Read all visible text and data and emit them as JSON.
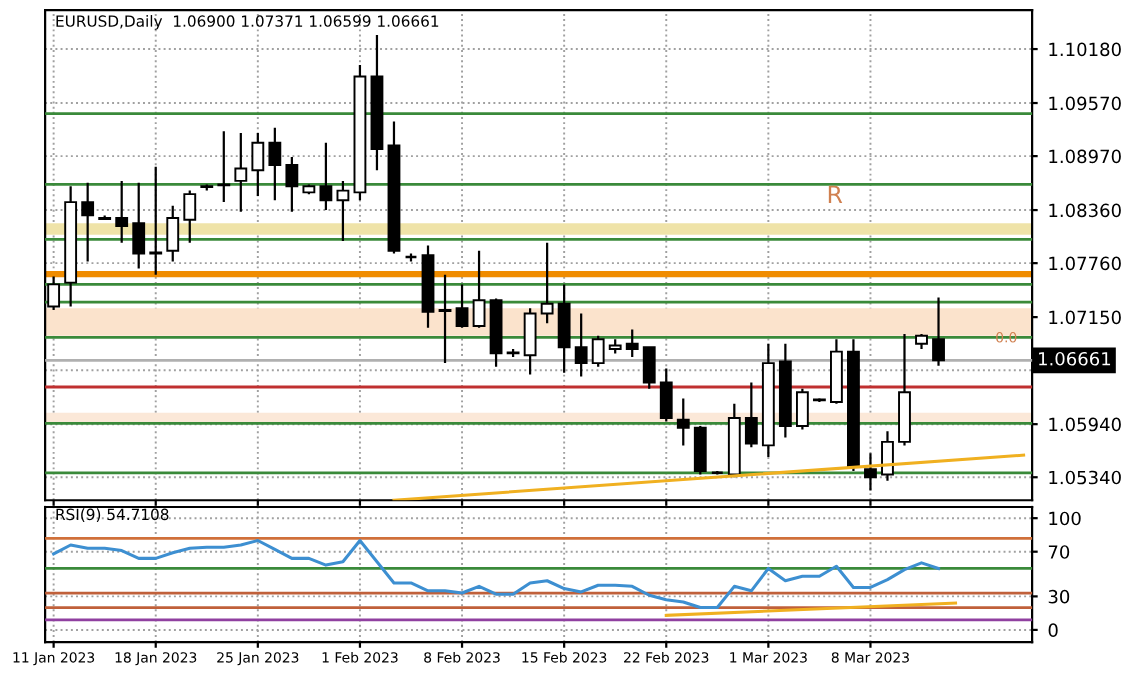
{
  "chart_data": [
    {
      "type": "candlestick",
      "title": "EURUSD,Daily  1.06900 1.07371 1.06599 1.06661",
      "categories": [
        null,
        null,
        null,
        null,
        null,
        null,
        null,
        null,
        null,
        null,
        null,
        null,
        null,
        null,
        null,
        null,
        null,
        null,
        null,
        null,
        null,
        null,
        null,
        null,
        null,
        null,
        null,
        null,
        null,
        null,
        null,
        null,
        null,
        null,
        null,
        null,
        null,
        null,
        null,
        null,
        null,
        null,
        null,
        null,
        null,
        null,
        null,
        null,
        null,
        null,
        null,
        null,
        null,
        null,
        null,
        null,
        null,
        null
      ],
      "ohlc": [
        [
          1.0727,
          1.0761,
          1.0723,
          1.0752
        ],
        [
          1.0754,
          1.0863,
          1.0727,
          1.0845
        ],
        [
          1.0845,
          1.0867,
          1.0778,
          1.083
        ],
        [
          1.0827,
          1.083,
          1.0825,
          1.0826
        ],
        [
          1.0827,
          1.0869,
          1.0799,
          1.0818
        ],
        [
          1.0821,
          1.0867,
          1.077,
          1.0787
        ],
        [
          1.0787,
          1.0885,
          1.0763,
          1.0788
        ],
        [
          1.079,
          1.0841,
          1.0778,
          1.0827
        ],
        [
          1.0825,
          1.0858,
          1.0799,
          1.0854
        ],
        [
          1.0862,
          1.0865,
          1.0858,
          1.0863
        ],
        [
          1.0864,
          1.0925,
          1.0845,
          1.0865
        ],
        [
          1.0869,
          1.0923,
          1.0834,
          1.0883
        ],
        [
          1.0881,
          1.0923,
          1.0852,
          1.0912
        ],
        [
          1.0912,
          1.0929,
          1.0847,
          1.0887
        ],
        [
          1.0887,
          1.0896,
          1.0834,
          1.0863
        ],
        [
          1.0856,
          1.0865,
          1.0854,
          1.0863
        ],
        [
          1.0863,
          1.0912,
          1.0836,
          1.0847
        ],
        [
          1.0847,
          1.0869,
          1.0801,
          1.0858
        ],
        [
          1.0856,
          1.1,
          1.0847,
          1.0987
        ],
        [
          1.0987,
          1.1034,
          1.0881,
          1.0905
        ],
        [
          1.0909,
          1.0936,
          1.0787,
          1.079
        ],
        [
          1.0783,
          1.0787,
          1.0778,
          1.0783
        ],
        [
          1.0785,
          1.0796,
          1.0703,
          1.0721
        ],
        [
          1.0723,
          1.0763,
          1.0663,
          1.0722
        ],
        [
          1.0725,
          1.0752,
          1.0703,
          1.0705
        ],
        [
          1.0705,
          1.079,
          1.0703,
          1.0734
        ],
        [
          1.0734,
          1.0736,
          1.0659,
          1.0674
        ],
        [
          1.0674,
          1.0679,
          1.067,
          1.0675
        ],
        [
          1.0672,
          1.0725,
          1.065,
          1.0719
        ],
        [
          1.0719,
          1.0799,
          1.0708,
          1.073
        ],
        [
          1.073,
          1.0752,
          1.0652,
          1.0681
        ],
        [
          1.0681,
          1.0719,
          1.0648,
          1.0663
        ],
        [
          1.0663,
          1.0694,
          1.0659,
          1.069
        ],
        [
          1.0679,
          1.069,
          1.0674,
          1.0683
        ],
        [
          1.0685,
          1.0701,
          1.067,
          1.0679
        ],
        [
          1.0681,
          1.0681,
          1.0634,
          1.0641
        ],
        [
          1.0641,
          1.0657,
          1.0597,
          1.0601
        ],
        [
          1.0599,
          1.0623,
          1.057,
          1.059
        ],
        [
          1.059,
          1.0592,
          1.0537,
          1.0541
        ],
        [
          1.0539,
          1.0541,
          1.0537,
          1.0539
        ],
        [
          1.0537,
          1.0617,
          1.0534,
          1.0601
        ],
        [
          1.0601,
          1.0641,
          1.0568,
          1.0572
        ],
        [
          1.057,
          1.0685,
          1.0557,
          1.0663
        ],
        [
          1.0665,
          1.0685,
          1.0579,
          1.0592
        ],
        [
          1.0592,
          1.0634,
          1.0588,
          1.063
        ],
        [
          1.0621,
          1.0623,
          1.0619,
          1.0622
        ],
        [
          1.0619,
          1.069,
          1.0617,
          1.0676
        ],
        [
          1.0676,
          1.069,
          1.0541,
          1.0546
        ],
        [
          1.0543,
          1.0561,
          1.0519,
          1.0534
        ],
        [
          1.0537,
          1.0586,
          1.053,
          1.0574
        ],
        [
          1.0574,
          1.0696,
          1.057,
          1.063
        ],
        [
          1.0685,
          1.0696,
          1.0679,
          1.0694
        ],
        [
          1.069,
          1.07371,
          1.06599,
          1.06661
        ],
        null,
        null,
        null,
        null,
        null
      ],
      "series": [
        {
          "type": "line",
          "color": "#f0b020",
          "values": [
            null,
            null,
            null,
            null,
            null,
            null,
            null,
            null,
            null,
            null,
            null,
            null,
            null,
            null,
            null,
            null,
            null,
            null,
            null,
            null,
            1.0508,
            null,
            null,
            null,
            null,
            null,
            null,
            null,
            null,
            null,
            null,
            null,
            null,
            null,
            null,
            null,
            null,
            null,
            null,
            null,
            null,
            null,
            null,
            null,
            null,
            null,
            null,
            null,
            null,
            null,
            null,
            null,
            null,
            null,
            null,
            null,
            null,
            1.0559
          ]
        }
      ],
      "ylim": [
        1.0508,
        1.1062
      ],
      "yticks": [
        {
          "value": 1.1018,
          "label": "1.10180"
        },
        {
          "value": 1.0957,
          "label": "1.09570"
        },
        {
          "value": 1.0897,
          "label": "1.08970"
        },
        {
          "value": 1.0836,
          "label": "1.08360"
        },
        {
          "value": 1.0776,
          "label": "1.07760"
        },
        {
          "value": 1.0715,
          "label": "1.07150"
        },
        {
          "value": 1.0655,
          "label": null
        },
        {
          "value": 1.0594,
          "label": "1.05940"
        },
        {
          "value": 1.0534,
          "label": "1.05340"
        }
      ],
      "ref_lines": [
        {
          "axis": "y",
          "value": 1.0945,
          "color": "#3a8a3a"
        },
        {
          "axis": "y",
          "value": 1.0865,
          "color": "#3a8a3a"
        },
        {
          "axis": "y",
          "value": 1.0803,
          "color": "#3a8a3a"
        },
        {
          "axis": "y",
          "value": 1.0752,
          "color": "#3a8a3a"
        },
        {
          "axis": "y",
          "value": 1.0732,
          "color": "#3a8a3a"
        },
        {
          "axis": "y",
          "value": 1.0692,
          "color": "#3a8a3a"
        },
        {
          "axis": "y",
          "value": 1.0636,
          "color": "#c03030"
        },
        {
          "axis": "y",
          "value": 1.0595,
          "color": "#3a8a3a"
        },
        {
          "axis": "y",
          "value": 1.0539,
          "color": "#3a8a3a"
        },
        {
          "axis": "y",
          "value": 1.06661,
          "label": "1.06661",
          "color": "#b0b0b0"
        }
      ],
      "bands": [
        {
          "axis": "y",
          "from": 1.076,
          "to": 1.0767,
          "color": "#f08c00"
        },
        {
          "axis": "y",
          "from": 1.0808,
          "to": 1.0821,
          "color": "#efe3a8"
        },
        {
          "axis": "y",
          "from": 1.0694,
          "to": 1.0725,
          "color": "#fbe3cc"
        },
        {
          "axis": "y",
          "from": 1.0596,
          "to": 1.0607,
          "color": "#fbe8d8"
        }
      ],
      "annotations": [
        "R",
        "0.0"
      ],
      "grid": true,
      "legend": false,
      "tick_labels": "y"
    },
    {
      "type": "line",
      "title": "RSI(9) 54.7108",
      "categories": [
        "11 Jan 2023",
        null,
        null,
        null,
        null,
        null,
        "18 Jan 2023",
        null,
        null,
        null,
        null,
        null,
        "25 Jan 2023",
        null,
        null,
        null,
        null,
        null,
        "1 Feb 2023",
        null,
        null,
        null,
        null,
        null,
        "8 Feb 2023",
        null,
        null,
        null,
        null,
        null,
        "15 Feb 2023",
        null,
        null,
        null,
        null,
        null,
        "22 Feb 2023",
        null,
        null,
        null,
        null,
        null,
        "1 Mar 2023",
        null,
        null,
        null,
        null,
        null,
        "8 Mar 2023",
        null,
        null,
        null,
        null,
        null,
        null,
        null,
        null,
        null
      ],
      "series": [
        {
          "color": "#3d8fd1",
          "values": [
            68,
            76,
            73,
            73,
            71,
            64,
            64,
            69,
            73,
            74,
            74,
            76,
            80,
            72,
            64,
            64,
            58,
            61,
            80,
            61,
            42,
            42,
            35,
            35,
            33,
            39,
            32,
            32,
            42,
            44,
            37,
            34,
            40,
            40,
            39,
            31,
            27,
            25,
            20,
            20,
            39,
            35,
            55,
            44,
            48,
            48,
            57,
            38,
            38,
            45,
            54,
            60,
            55,
            null,
            null,
            null,
            null,
            null
          ]
        },
        {
          "color": "#f0b020",
          "values": [
            null,
            null,
            null,
            null,
            null,
            null,
            null,
            null,
            null,
            null,
            null,
            null,
            null,
            null,
            null,
            null,
            null,
            null,
            null,
            null,
            null,
            null,
            null,
            null,
            null,
            null,
            null,
            null,
            null,
            null,
            null,
            null,
            null,
            null,
            null,
            null,
            13,
            null,
            null,
            null,
            null,
            null,
            null,
            null,
            null,
            null,
            null,
            null,
            null,
            null,
            null,
            null,
            null,
            24,
            null,
            null,
            null,
            null
          ]
        }
      ],
      "ylim": [
        -11,
        110
      ],
      "yticks": [
        0,
        30,
        70,
        100
      ],
      "ref_lines": [
        {
          "axis": "y",
          "value": 82,
          "color": "#d0703a"
        },
        {
          "axis": "y",
          "value": 55,
          "color": "#3a8a3a"
        },
        {
          "axis": "y",
          "value": 33,
          "color": "#c0603a"
        },
        {
          "axis": "y",
          "value": 20,
          "color": "#c0603a"
        },
        {
          "axis": "y",
          "value": 9,
          "color": "#9040a0"
        }
      ],
      "grid": true,
      "legend": false,
      "marker": "none"
    }
  ]
}
